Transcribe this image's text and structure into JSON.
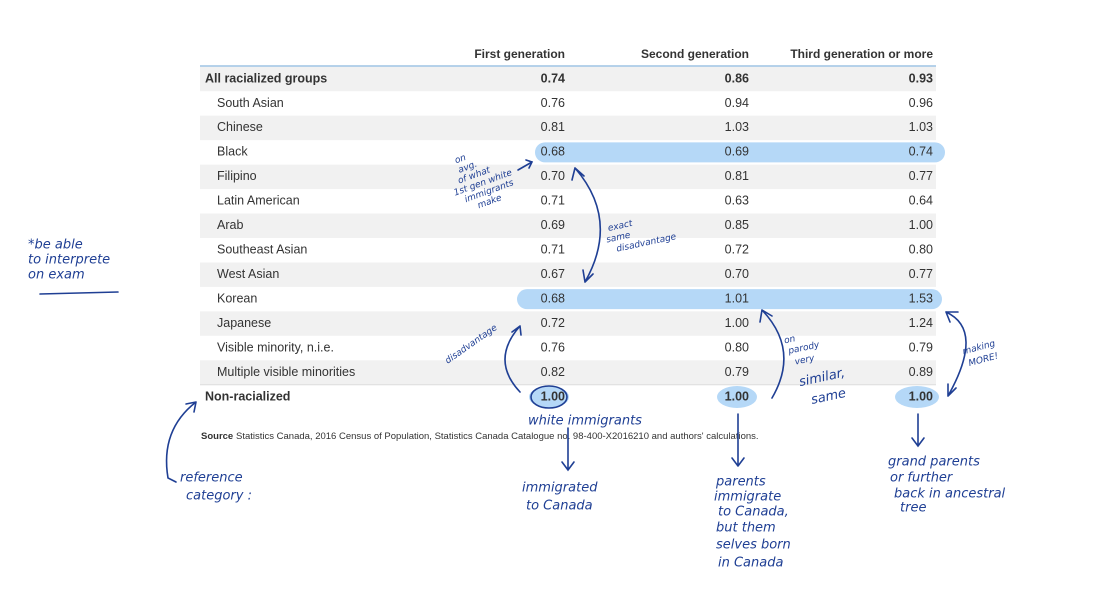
{
  "table": {
    "columns": [
      "",
      "First generation",
      "Second generation",
      "Third generation or more"
    ],
    "rows": [
      [
        "All racialized groups",
        "0.74",
        "0.86",
        "0.93"
      ],
      [
        "South Asian",
        "0.76",
        "0.94",
        "0.96"
      ],
      [
        "Chinese",
        "0.81",
        "1.03",
        "1.03"
      ],
      [
        "Black",
        "0.68",
        "0.69",
        "0.74"
      ],
      [
        "Filipino",
        "0.70",
        "0.81",
        "0.77"
      ],
      [
        "Latin American",
        "0.71",
        "0.63",
        "0.64"
      ],
      [
        "Arab",
        "0.69",
        "0.85",
        "1.00"
      ],
      [
        "Southeast Asian",
        "0.71",
        "0.72",
        "0.80"
      ],
      [
        "West Asian",
        "0.67",
        "0.70",
        "0.77"
      ],
      [
        "Korean",
        "0.68",
        "1.01",
        "1.53"
      ],
      [
        "Japanese",
        "0.72",
        "1.00",
        "1.24"
      ],
      [
        "Visible minority, n.i.e.",
        "0.76",
        "0.80",
        "0.79"
      ],
      [
        "Multiple visible minorities",
        "0.82",
        "0.79",
        "0.89"
      ],
      [
        "Non-racialized",
        "1.00",
        "1.00",
        "1.00"
      ]
    ]
  },
  "source": {
    "label": "Source",
    "text": "Statistics Canada, 2016 Census of Population, Statistics Canada Catalogue no. 98-400-X2016210 and authors' calculations."
  },
  "annotations": {
    "exam": [
      "*be able",
      "to interprete",
      "on exam"
    ],
    "on_avg": [
      "on",
      "avg.",
      "of what",
      "1st gen white",
      "immigrants",
      "make"
    ],
    "exact_same": [
      "exact",
      "same",
      "disadvantage"
    ],
    "disadvantage": "disadvantage",
    "white_immigrants": "white immigrants",
    "immigrated": [
      "immigrated",
      "to Canada"
    ],
    "parents": [
      "parents",
      "immigrate",
      "to Canada,",
      "but them",
      "selves born",
      "in Canada"
    ],
    "grandparents": [
      "grand parents",
      "or further",
      "back in  ancestral",
      "tree"
    ],
    "on_parody": [
      "on",
      "parody",
      "very",
      "similar,",
      "same"
    ],
    "making_more": [
      "making",
      "MORE!"
    ],
    "reference": [
      "reference",
      "category :"
    ]
  }
}
